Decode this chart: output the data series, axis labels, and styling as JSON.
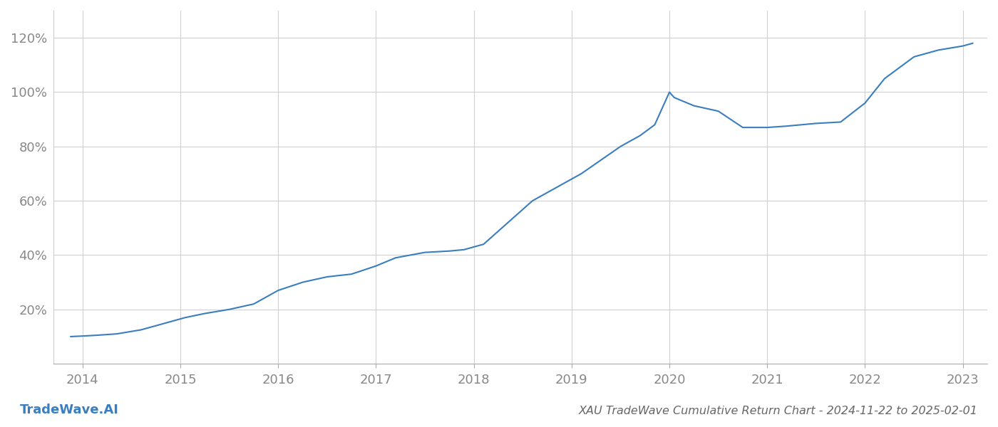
{
  "title": "XAU TradeWave Cumulative Return Chart - 2024-11-22 to 2025-02-01",
  "watermark": "TradeWave.AI",
  "x_values": [
    2013.88,
    2014.0,
    2014.15,
    2014.35,
    2014.6,
    2014.85,
    2015.05,
    2015.25,
    2015.5,
    2015.75,
    2016.0,
    2016.25,
    2016.5,
    2016.75,
    2017.0,
    2017.2,
    2017.5,
    2017.75,
    2017.9,
    2018.1,
    2018.35,
    2018.6,
    2018.85,
    2019.1,
    2019.3,
    2019.5,
    2019.7,
    2019.85,
    2020.0,
    2020.05,
    2020.25,
    2020.5,
    2020.75,
    2021.0,
    2021.2,
    2021.5,
    2021.75,
    2022.0,
    2022.2,
    2022.5,
    2022.75,
    2023.0,
    2023.1
  ],
  "y_values": [
    10,
    10.2,
    10.5,
    11,
    12.5,
    15,
    17,
    18.5,
    20,
    22,
    27,
    30,
    32,
    33,
    36,
    39,
    41,
    41.5,
    42,
    44,
    52,
    60,
    65,
    70,
    75,
    80,
    84,
    88,
    100,
    98,
    95,
    93,
    87,
    87,
    87.5,
    88.5,
    89,
    96,
    105,
    113,
    115.5,
    117,
    118
  ],
  "line_color": "#3a7ebf",
  "line_width": 1.5,
  "background_color": "#ffffff",
  "grid_color": "#d0d0d0",
  "tick_color": "#888888",
  "title_color": "#666666",
  "watermark_color": "#3a7ebf",
  "xlim": [
    2013.7,
    2023.25
  ],
  "ylim": [
    0,
    130
  ],
  "yticks": [
    20,
    40,
    60,
    80,
    100,
    120
  ],
  "xticks": [
    2014,
    2015,
    2016,
    2017,
    2018,
    2019,
    2020,
    2021,
    2022,
    2023
  ],
  "tick_fontsize": 13,
  "title_fontsize": 11.5,
  "watermark_fontsize": 13
}
